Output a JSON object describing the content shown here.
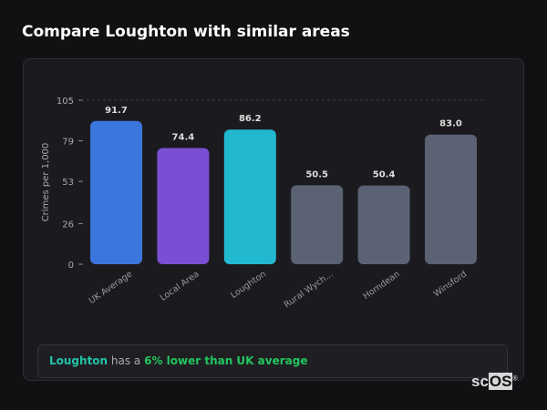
{
  "title": "Compare Loughton with similar areas",
  "chart_data": {
    "type": "bar",
    "title": "",
    "xlabel": "",
    "ylabel": "Crimes per 1,000",
    "ylim": [
      0,
      105
    ],
    "yticks": [
      0,
      26,
      53,
      79,
      105
    ],
    "grid": "top line dashed",
    "categories": [
      "UK Average",
      "Local Area",
      "Loughton",
      "Rural Wych...",
      "Horndean",
      "Winsford"
    ],
    "values": [
      91.7,
      74.4,
      86.2,
      50.5,
      50.4,
      83.0
    ],
    "value_labels": [
      "91.7",
      "74.4",
      "86.2",
      "50.5",
      "50.4",
      "83.0"
    ],
    "colors": [
      "#3b76dc",
      "#7b4fd4",
      "#22b8d0",
      "#5a6274",
      "#5a6274",
      "#5a6274"
    ]
  },
  "summary": {
    "area": "Loughton",
    "middle": " has a ",
    "comparison": "6% lower than UK average"
  },
  "logo": {
    "text_sc": "sc",
    "text_os": "OS",
    "mark": "®"
  }
}
